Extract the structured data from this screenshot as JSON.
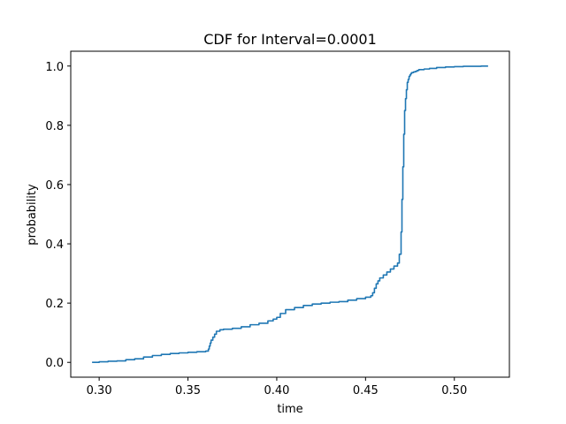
{
  "chart_data": {
    "type": "line",
    "title": "CDF for Interval=0.0001",
    "xlabel": "time",
    "ylabel": "probability",
    "xlim": [
      0.284,
      0.531
    ],
    "ylim": [
      -0.05,
      1.05
    ],
    "xticks": [
      0.3,
      0.35,
      0.4,
      0.45,
      0.5
    ],
    "xtick_labels": [
      "0.30",
      "0.35",
      "0.40",
      "0.45",
      "0.50"
    ],
    "yticks": [
      0.0,
      0.2,
      0.4,
      0.6,
      0.8,
      1.0
    ],
    "ytick_labels": [
      "0.0",
      "0.2",
      "0.4",
      "0.6",
      "0.8",
      "1.0"
    ],
    "grid": false,
    "series": [
      {
        "color": "#1f77b4",
        "x": [
          0.296,
          0.3,
          0.305,
          0.31,
          0.315,
          0.32,
          0.325,
          0.33,
          0.335,
          0.34,
          0.345,
          0.35,
          0.355,
          0.36,
          0.3615,
          0.362,
          0.3625,
          0.363,
          0.364,
          0.365,
          0.366,
          0.368,
          0.37,
          0.375,
          0.38,
          0.385,
          0.39,
          0.395,
          0.398,
          0.4,
          0.402,
          0.405,
          0.41,
          0.415,
          0.42,
          0.425,
          0.43,
          0.435,
          0.44,
          0.445,
          0.45,
          0.453,
          0.454,
          0.455,
          0.456,
          0.457,
          0.458,
          0.46,
          0.462,
          0.464,
          0.466,
          0.468,
          0.469,
          0.47,
          0.4705,
          0.471,
          0.4715,
          0.472,
          0.4725,
          0.473,
          0.4735,
          0.474,
          0.4745,
          0.475,
          0.4755,
          0.476,
          0.477,
          0.478,
          0.479,
          0.48,
          0.483,
          0.486,
          0.49,
          0.495,
          0.5,
          0.505,
          0.51,
          0.515,
          0.519
        ],
        "y": [
          0.0,
          0.002,
          0.004,
          0.005,
          0.009,
          0.012,
          0.018,
          0.023,
          0.027,
          0.03,
          0.032,
          0.034,
          0.036,
          0.038,
          0.045,
          0.055,
          0.065,
          0.075,
          0.085,
          0.095,
          0.105,
          0.11,
          0.112,
          0.115,
          0.12,
          0.127,
          0.132,
          0.14,
          0.146,
          0.152,
          0.165,
          0.178,
          0.185,
          0.192,
          0.197,
          0.2,
          0.203,
          0.205,
          0.21,
          0.215,
          0.22,
          0.225,
          0.235,
          0.25,
          0.265,
          0.275,
          0.285,
          0.295,
          0.305,
          0.315,
          0.325,
          0.335,
          0.365,
          0.44,
          0.55,
          0.66,
          0.77,
          0.85,
          0.89,
          0.92,
          0.945,
          0.955,
          0.965,
          0.97,
          0.975,
          0.978,
          0.98,
          0.982,
          0.985,
          0.988,
          0.99,
          0.992,
          0.995,
          0.997,
          0.998,
          0.999,
          0.999,
          1.0,
          1.0
        ]
      }
    ]
  }
}
